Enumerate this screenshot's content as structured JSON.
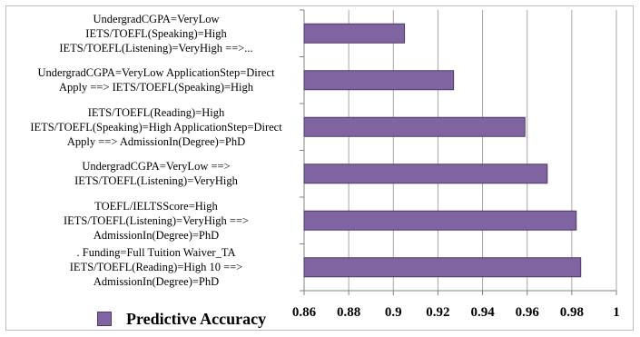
{
  "chart_data": {
    "type": "bar",
    "orientation": "horizontal",
    "categories": [
      "UndergradCGPA=VeryLow\nIETS/TOEFL(Speaking)=High\nIETS/TOEFL(Listening)=VeryHigh ==>...",
      "UndergradCGPA=VeryLow ApplicationStep=Direct\nApply ==> IETS/TOEFL(Speaking)=High",
      "IETS/TOEFL(Reading)=High\nIETS/TOEFL(Speaking)=High   ApplicationStep=Direct\nApply ==> AdmissionIn(Degree)=PhD",
      "UndergradCGPA=VeryLow  ==>\nIETS/TOEFL(Listening)=VeryHigh",
      "TOEFL/IELTSScore=High\nIETS/TOEFL(Listening)=VeryHigh ==>\nAdmissionIn(Degree)=PhD",
      ".   Funding=Full Tuition Waiver_TA\nIETS/TOEFL(Reading)=High 10 ==>\nAdmissionIn(Degree)=PhD"
    ],
    "series": [
      {
        "name": "Predictive Accuracy",
        "values": [
          0.905,
          0.927,
          0.959,
          0.969,
          0.982,
          0.984
        ]
      }
    ],
    "xlim": [
      0.86,
      1.0
    ],
    "xticks": [
      "0.86",
      "0.88",
      "0.9",
      "0.92",
      "0.94",
      "0.96",
      "0.98",
      "1"
    ],
    "grid": true,
    "legend": "bottom-left",
    "colors": {
      "bar": "#8064a2",
      "bar_border": "#4d3a66",
      "grid": "#a6a6a6"
    }
  }
}
